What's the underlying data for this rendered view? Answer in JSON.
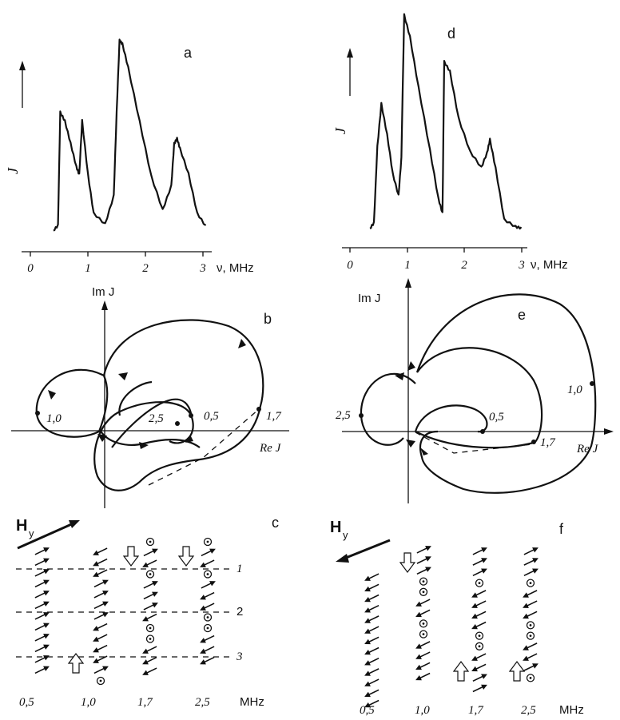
{
  "panels": {
    "a": {
      "letter": "a",
      "ylabel": "J",
      "xunit": "ν, MHz",
      "ticks": [
        "0",
        "1",
        "2",
        "3"
      ]
    },
    "d": {
      "letter": "d",
      "ylabel": "J",
      "xunit": "ν, MHz",
      "ticks": [
        "0",
        "1",
        "2",
        "3"
      ]
    },
    "b": {
      "letter": "b",
      "im_label": "Im J",
      "re_label": "Re J",
      "points": [
        "1,0",
        "0,5",
        "1,7",
        "2,5"
      ]
    },
    "e": {
      "letter": "e",
      "im_label": "Im J",
      "re_label": "Re J",
      "points": [
        "2,5",
        "0,5",
        "1,0",
        "1,7"
      ]
    },
    "c": {
      "letter": "c",
      "field_label": "H",
      "field_sub": "y",
      "rows": [
        "1",
        "2",
        "3"
      ],
      "columns": [
        "0,5",
        "1,0",
        "1,7",
        "2,5"
      ],
      "unit": "MHz"
    },
    "f": {
      "letter": "f",
      "field_label": "H",
      "field_sub": "y",
      "columns": [
        "0,5",
        "1,0",
        "1,7",
        "2,5"
      ],
      "unit": "MHz"
    }
  },
  "chart_data": [
    {
      "type": "line",
      "panel": "a",
      "xlabel": "ν, MHz",
      "ylabel": "J",
      "xlim": [
        0,
        3
      ],
      "grid": false,
      "x": [
        0.4,
        0.48,
        0.52,
        0.6,
        0.7,
        0.8,
        0.85,
        0.9,
        1.0,
        1.1,
        1.3,
        1.45,
        1.5,
        1.55,
        1.6,
        1.7,
        1.9,
        2.1,
        2.3,
        2.45,
        2.5,
        2.55,
        2.6,
        2.75,
        2.9,
        3.05
      ],
      "y": [
        0.03,
        0.06,
        0.6,
        0.55,
        0.45,
        0.33,
        0.3,
        0.56,
        0.3,
        0.12,
        0.06,
        0.2,
        0.6,
        0.93,
        0.92,
        0.8,
        0.55,
        0.3,
        0.13,
        0.25,
        0.44,
        0.47,
        0.43,
        0.3,
        0.12,
        0.05
      ]
    },
    {
      "type": "line",
      "panel": "d",
      "xlabel": "ν, MHz",
      "ylabel": "J",
      "xlim": [
        0,
        3
      ],
      "grid": false,
      "x": [
        0.35,
        0.42,
        0.48,
        0.55,
        0.65,
        0.75,
        0.85,
        0.9,
        0.95,
        1.05,
        1.2,
        1.4,
        1.55,
        1.62,
        1.65,
        1.75,
        1.9,
        2.1,
        2.3,
        2.4,
        2.45,
        2.55,
        2.7,
        2.9,
        3.0
      ],
      "y": [
        0.03,
        0.06,
        0.4,
        0.58,
        0.45,
        0.27,
        0.18,
        0.35,
        0.97,
        0.88,
        0.65,
        0.38,
        0.17,
        0.1,
        0.77,
        0.72,
        0.52,
        0.38,
        0.3,
        0.37,
        0.42,
        0.3,
        0.08,
        0.04,
        0.04
      ]
    }
  ]
}
